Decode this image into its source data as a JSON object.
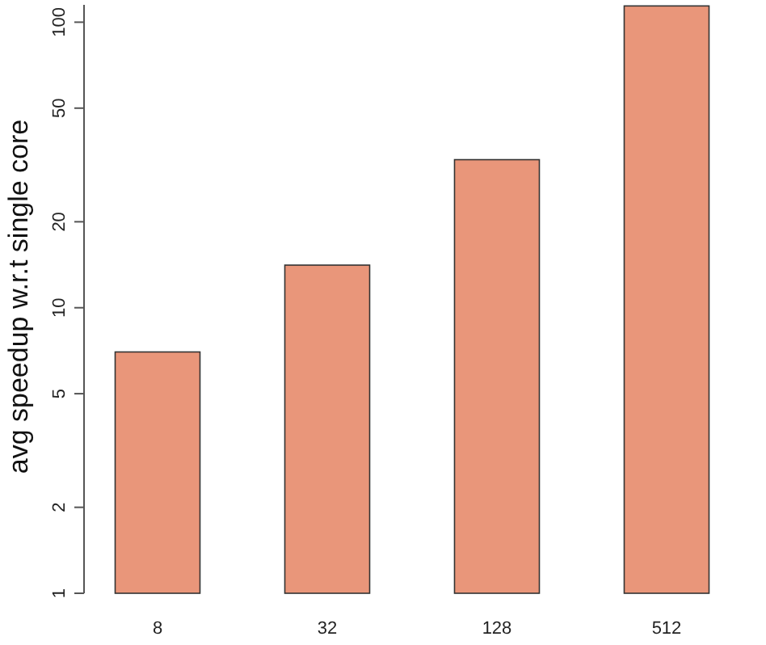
{
  "chart_data": {
    "type": "bar",
    "ylabel": "avg speedup w.r.t single core",
    "categories": [
      "8",
      "32",
      "128",
      "512"
    ],
    "values": [
      7.0,
      14.1,
      33,
      114
    ],
    "color": "#e9967a",
    "log": true,
    "ylim": [
      1,
      115
    ],
    "yticks": [
      1,
      2,
      5,
      10,
      20,
      50,
      100
    ],
    "grid": false
  }
}
